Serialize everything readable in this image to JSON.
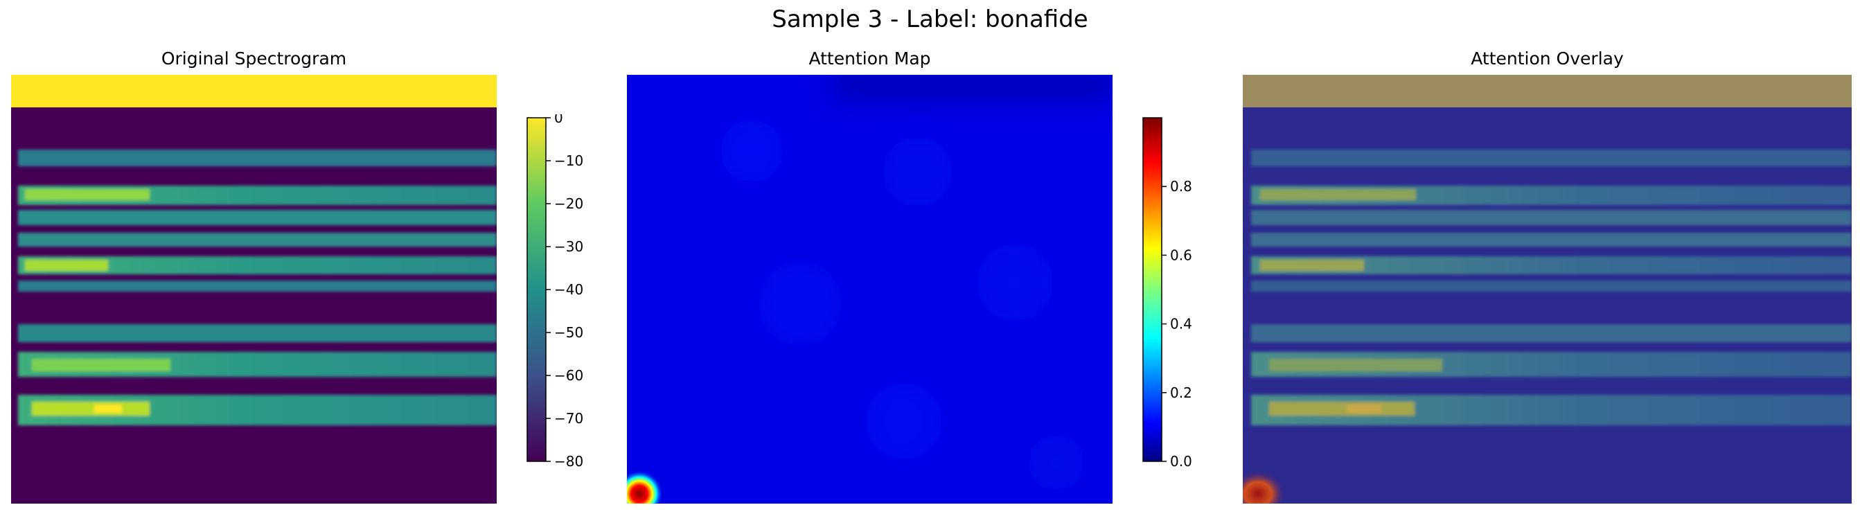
{
  "figure": {
    "title": "Sample 3 - Label: bonafide"
  },
  "panels": {
    "spectrogram": {
      "title": "Original Spectrogram"
    },
    "attention": {
      "title": "Attention Map"
    },
    "overlay": {
      "title": "Attention Overlay"
    }
  },
  "colorbars": {
    "spectrogram": {
      "colormap": "viridis",
      "ticks": [
        "0",
        "−10",
        "−20",
        "−30",
        "−40",
        "−50",
        "−60",
        "−70",
        "−80"
      ]
    },
    "attention": {
      "colormap": "jet",
      "ticks": [
        "0.8",
        "0.6",
        "0.4",
        "0.2",
        "0.0"
      ]
    }
  }
}
